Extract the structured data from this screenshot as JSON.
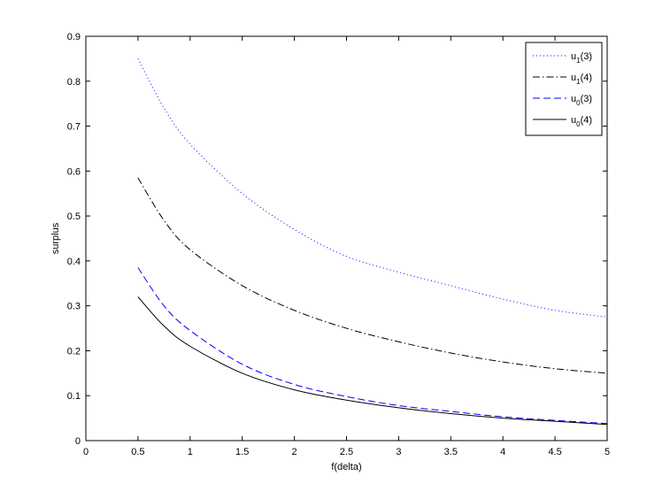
{
  "chart_data": {
    "type": "line",
    "xlabel": "f(delta)",
    "ylabel": "surplus",
    "xlim": [
      0,
      5
    ],
    "ylim": [
      0,
      0.9
    ],
    "xticks": [
      "0",
      "0.5",
      "1",
      "1.5",
      "2",
      "2.5",
      "3",
      "3.5",
      "4",
      "4.5",
      "5"
    ],
    "yticks": [
      "0",
      "0.1",
      "0.2",
      "0.3",
      "0.4",
      "0.5",
      "0.6",
      "0.7",
      "0.8",
      "0.9"
    ],
    "grid": false,
    "legend_position": "top-right",
    "series": [
      {
        "name": "u1(3)",
        "legend_base": "u",
        "legend_sub": "1",
        "legend_arg": "(3)",
        "color": "#0000ff",
        "style": "dotted",
        "x": [
          0.5,
          0.75,
          1,
          1.5,
          2,
          2.5,
          3,
          3.5,
          4,
          4.5,
          5
        ],
        "y": [
          0.85,
          0.74,
          0.66,
          0.55,
          0.47,
          0.41,
          0.375,
          0.345,
          0.315,
          0.29,
          0.275
        ]
      },
      {
        "name": "u1(4)",
        "legend_base": "u",
        "legend_sub": "1",
        "legend_arg": "(4)",
        "color": "#000000",
        "style": "dashdot",
        "x": [
          0.5,
          0.75,
          1,
          1.5,
          2,
          2.5,
          3,
          3.5,
          4,
          4.5,
          5
        ],
        "y": [
          0.585,
          0.49,
          0.425,
          0.345,
          0.29,
          0.25,
          0.22,
          0.195,
          0.175,
          0.16,
          0.15
        ]
      },
      {
        "name": "u0(3)",
        "legend_base": "u",
        "legend_sub": "0",
        "legend_arg": "(3)",
        "color": "#0000ff",
        "style": "dashed",
        "x": [
          0.5,
          0.75,
          1,
          1.5,
          2,
          2.5,
          3,
          3.5,
          4,
          4.5,
          5
        ],
        "y": [
          0.385,
          0.3,
          0.245,
          0.17,
          0.125,
          0.098,
          0.078,
          0.065,
          0.053,
          0.045,
          0.038
        ]
      },
      {
        "name": "u0(4)",
        "legend_base": "u",
        "legend_sub": "0",
        "legend_arg": "(4)",
        "color": "#000000",
        "style": "solid",
        "x": [
          0.5,
          0.75,
          1,
          1.5,
          2,
          2.5,
          3,
          3.5,
          4,
          4.5,
          5
        ],
        "y": [
          0.32,
          0.255,
          0.21,
          0.15,
          0.113,
          0.09,
          0.073,
          0.06,
          0.05,
          0.043,
          0.036
        ]
      }
    ]
  }
}
